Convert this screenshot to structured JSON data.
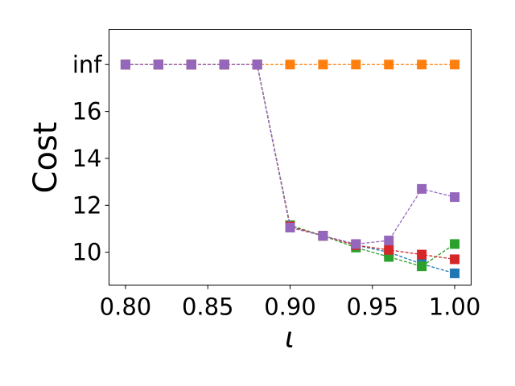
{
  "chart_data": {
    "type": "line",
    "title": "",
    "xlabel": "ι",
    "ylabel": "Cost",
    "x": [
      0.8,
      0.82,
      0.84,
      0.86,
      0.88,
      0.9,
      0.92,
      0.94,
      0.96,
      0.98,
      1.0
    ],
    "xlim": [
      0.79,
      1.01
    ],
    "ylim": [
      8.6,
      19.5
    ],
    "xticks": [
      0.8,
      0.85,
      0.9,
      0.95,
      1.0
    ],
    "xtick_labels": [
      "0.80",
      "0.85",
      "0.90",
      "0.95",
      "1.00"
    ],
    "yticks": [
      10,
      12,
      14,
      16,
      18
    ],
    "ytick_labels": [
      "10",
      "12",
      "14",
      "16",
      "inf"
    ],
    "inf_value": 18,
    "grid": false,
    "legend": "none",
    "series": [
      {
        "color": "#1f77b4",
        "values": [
          "inf",
          "inf",
          "inf",
          "inf",
          "inf",
          11.1,
          10.7,
          10.3,
          10.0,
          9.5,
          9.1
        ]
      },
      {
        "color": "#ff7f0e",
        "values": [
          "inf",
          "inf",
          "inf",
          "inf",
          "inf",
          "inf",
          "inf",
          "inf",
          "inf",
          "inf",
          "inf"
        ]
      },
      {
        "color": "#2ca02c",
        "values": [
          "inf",
          "inf",
          "inf",
          "inf",
          "inf",
          11.15,
          10.7,
          10.2,
          9.8,
          9.4,
          10.35
        ]
      },
      {
        "color": "#d62728",
        "values": [
          "inf",
          "inf",
          "inf",
          "inf",
          "inf",
          11.1,
          10.7,
          10.3,
          10.1,
          9.9,
          9.7
        ]
      },
      {
        "color": "#9467bd",
        "values": [
          "inf",
          "inf",
          "inf",
          "inf",
          "inf",
          11.05,
          10.7,
          10.35,
          10.5,
          12.7,
          12.35
        ]
      }
    ]
  }
}
